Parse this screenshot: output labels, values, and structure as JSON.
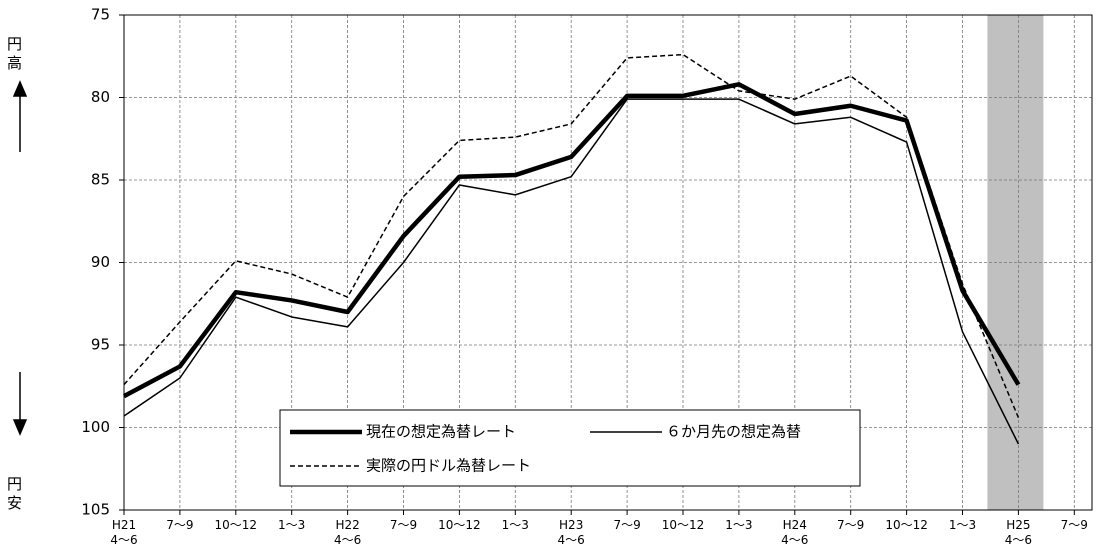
{
  "chart_data": {
    "type": "line",
    "y_top_label": "円高",
    "y_bottom_label": "円安",
    "categories": [
      "H21\n4～6",
      "7～9",
      "10～12",
      "1～3",
      "H22\n4～6",
      "7～9",
      "10～12",
      "1～3",
      "H23\n4～6",
      "7～9",
      "10～12",
      "1～3",
      "H24\n4～6",
      "7～9",
      "10～12",
      "1～3",
      "H25\n4～6",
      "7～9"
    ],
    "series": [
      {
        "name": "現在の想定為替レート",
        "color": "#000000",
        "line_width": 4.5,
        "dash": "solid",
        "values": [
          98.1,
          96.3,
          91.8,
          92.3,
          93.0,
          88.4,
          84.8,
          84.7,
          83.6,
          79.9,
          79.9,
          79.2,
          81.0,
          80.5,
          81.4,
          91.7,
          97.4,
          null
        ]
      },
      {
        "name": "６か月先の想定為替",
        "color": "#000000",
        "line_width": 1.5,
        "dash": "solid",
        "values": [
          99.3,
          97.0,
          92.1,
          93.3,
          93.9,
          90.0,
          85.3,
          85.9,
          84.8,
          80.1,
          80.1,
          80.1,
          81.6,
          81.2,
          82.7,
          94.2,
          101.0,
          null
        ]
      },
      {
        "name": "実際の円ドル為替レート",
        "color": "#000000",
        "line_width": 1.5,
        "dash": "dashed",
        "values": [
          97.4,
          93.6,
          89.9,
          90.7,
          92.1,
          86.0,
          82.6,
          82.4,
          81.6,
          77.6,
          77.4,
          79.6,
          80.1,
          78.7,
          81.2,
          91.3,
          99.4,
          null
        ]
      }
    ],
    "ylim": [
      75,
      105
    ],
    "yticks": [
      75,
      80,
      85,
      90,
      95,
      100,
      105
    ],
    "y_inverted": true,
    "grid": true,
    "highlight_category": 16,
    "highlight_color": "#c0c0c0"
  }
}
